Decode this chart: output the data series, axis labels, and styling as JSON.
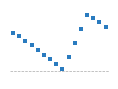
{
  "x": [
    0,
    1,
    2,
    3,
    4,
    5,
    6,
    7,
    8,
    9,
    10,
    11,
    12,
    13,
    14,
    15
  ],
  "y": [
    5,
    2,
    -2,
    -6,
    -10,
    -14,
    -18,
    -22,
    -26,
    -16,
    -4,
    8,
    20,
    18,
    14,
    10
  ],
  "line_color": "#2a7bbf",
  "ref_color": "#aaaaaa",
  "ref_y": -28,
  "background_color": "#ffffff",
  "ylim": [
    -35,
    25
  ],
  "xlim": [
    -0.5,
    15.5
  ],
  "marker_size": 2.5
}
